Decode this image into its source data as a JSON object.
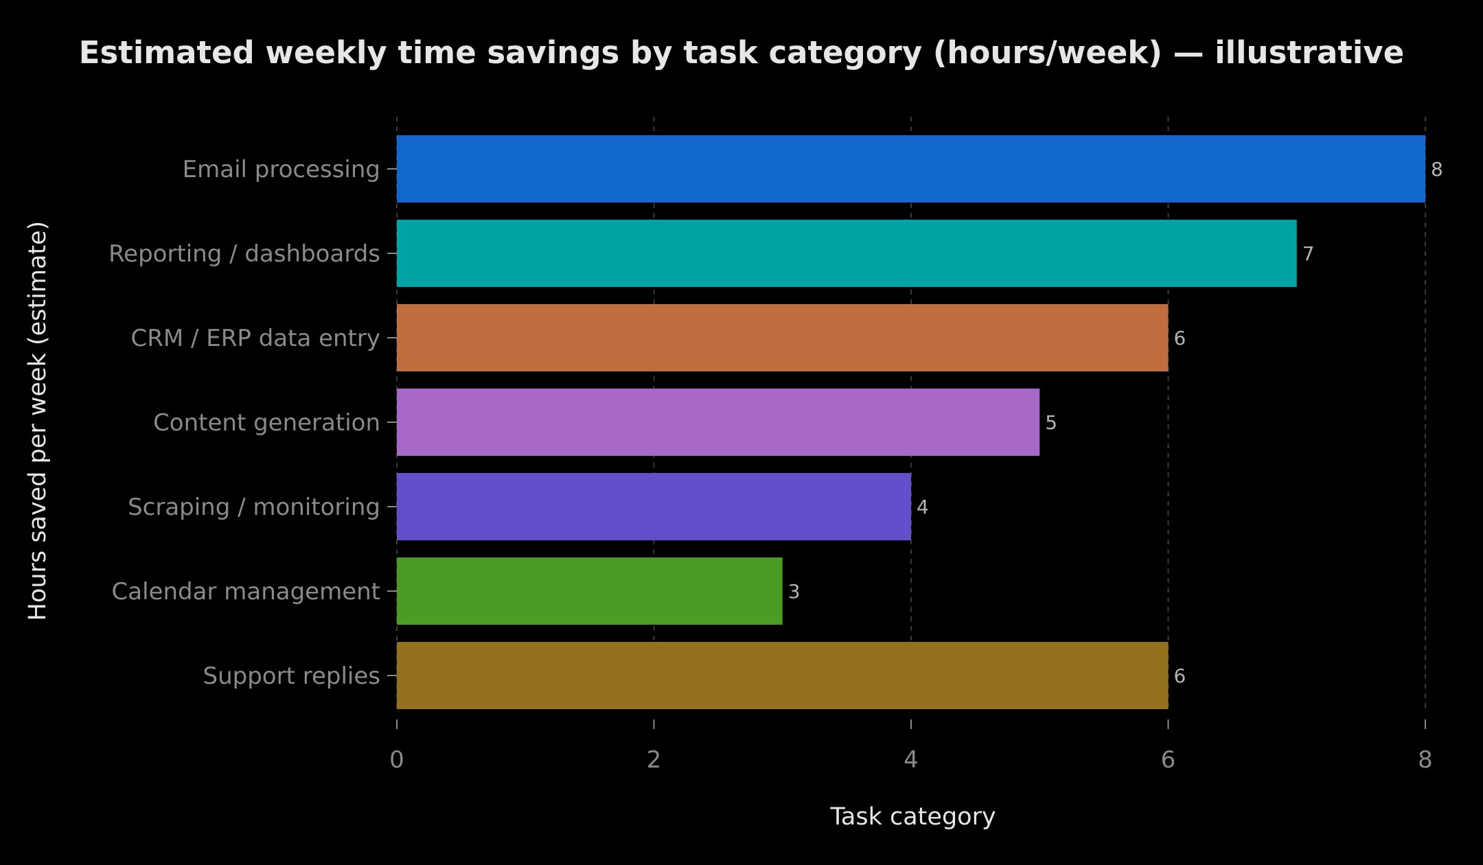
{
  "chart_data": {
    "type": "bar",
    "orientation": "horizontal",
    "title": "Estimated weekly time savings by task category (hours/week) — illustrative",
    "xlabel": "Task category",
    "ylabel": "Hours saved per week (estimate)",
    "categories": [
      "Email processing",
      "Reporting / dashboards",
      "CRM / ERP data entry",
      "Content generation",
      "Scraping / monitoring",
      "Calendar management",
      "Support replies"
    ],
    "values": [
      8,
      7,
      6,
      5,
      4,
      3,
      6
    ],
    "colors": [
      "#1268cc",
      "#00a3a3",
      "#c06e40",
      "#a868c8",
      "#634fc9",
      "#4a9c24",
      "#94711d"
    ],
    "xlim": [
      0,
      8
    ],
    "xticks": [
      0,
      2,
      4,
      6,
      8
    ],
    "grid": "x-dashed",
    "legend": "none",
    "background": "#000000"
  }
}
